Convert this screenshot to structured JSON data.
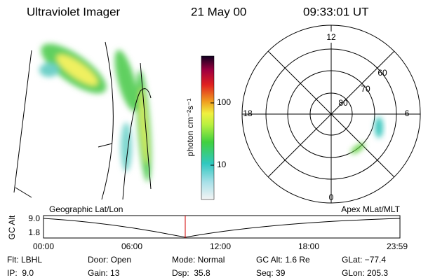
{
  "header": {
    "title": "Ultraviolet Imager",
    "date": "21 May 00",
    "time": "09:33:01 UT"
  },
  "colorbar": {
    "label": "photon cm⁻²s⁻¹",
    "ticks": [
      "100",
      "10"
    ]
  },
  "polar": {
    "mlt_labels": [
      "12",
      "18",
      "6",
      "0"
    ],
    "lat_labels": [
      "60",
      "70",
      "80"
    ]
  },
  "altitude_plot": {
    "axis_label": "GC Alt",
    "y_labels": [
      "9.0",
      "1.8"
    ],
    "left_title": "Geographic Lat/Lon",
    "right_title": "Apex MLat/MLT",
    "x_labels": [
      "00:00",
      "06:00",
      "12:00",
      "18:00",
      "23:59"
    ]
  },
  "footer": {
    "rows": [
      [
        "Flt: LBHL",
        "Door: Open",
        "Mode: Normal",
        "GC Alt: 1.6 Re",
        "GLat: −77.4"
      ],
      [
        "IP:  9.0",
        "Gain: 13",
        "Dsp:  35.8",
        "Seq: 39",
        "GLon: 205.3"
      ]
    ]
  }
}
